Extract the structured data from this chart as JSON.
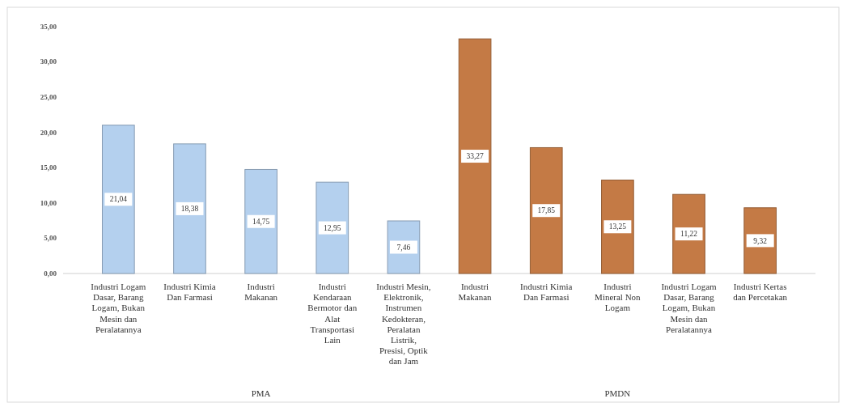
{
  "chart_data": {
    "type": "bar",
    "categories": [
      "Industri Logam Dasar, Barang Logam, Bukan Mesin dan Peralatannya",
      "Industri Kimia Dan Farmasi",
      "Industri Makanan",
      "Industri Kendaraan Bermotor dan Alat Transportasi Lain",
      "Industri Mesin, Elektronik, Instrumen Kedokteran, Peralatan Listrik, Presisi, Optik dan Jam",
      "Industri Makanan",
      "Industri Kimia Dan Farmasi",
      "Industri Mineral Non Logam",
      "Industri Logam Dasar, Barang Logam, Bukan Mesin dan Peralatannya",
      "Industri Kertas dan Percetakan"
    ],
    "values": [
      21.04,
      18.38,
      14.75,
      12.95,
      7.46,
      33.27,
      17.85,
      13.25,
      11.22,
      9.32
    ],
    "value_labels": [
      "21,04",
      "18,38",
      "14,75",
      "12,95",
      "7,46",
      "33,27",
      "17,85",
      "13,25",
      "11,22",
      "9,32"
    ],
    "colors": [
      "#b4d0ee",
      "#b4d0ee",
      "#b4d0ee",
      "#b4d0ee",
      "#b4d0ee",
      "#c47a45",
      "#c47a45",
      "#c47a45",
      "#c47a45",
      "#c47a45"
    ],
    "ylim": [
      0,
      35
    ],
    "yticks": [
      {
        "value": 0,
        "label": "0,00"
      },
      {
        "value": 5,
        "label": "5,00"
      },
      {
        "value": 10,
        "label": "10,00"
      },
      {
        "value": 15,
        "label": "15,00"
      },
      {
        "value": 20,
        "label": "20,00"
      },
      {
        "value": 25,
        "label": "25,00"
      },
      {
        "value": 30,
        "label": "30,00"
      },
      {
        "value": 35,
        "label": "35,00"
      }
    ],
    "annotations": [
      "PMA",
      "PMDN"
    ]
  }
}
